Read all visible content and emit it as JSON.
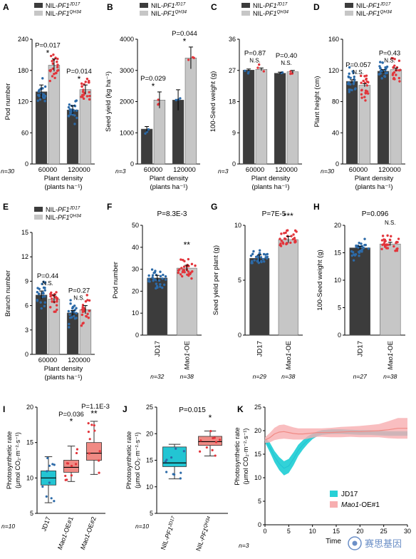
{
  "colors": {
    "dark_bar": "#3c3c3c",
    "light_bar": "#c6c6c6",
    "blue": "#2c6aa8",
    "red": "#e2353b",
    "cyan": "#23c5d3",
    "salmon": "#f08a84",
    "jd17_fill": "#27d0d6",
    "mao1_fill": "#f7aeb0",
    "watermark": "#6b8fc7"
  },
  "chart_data": [
    {
      "panel": "A",
      "type": "bar",
      "legend": [
        "NIL-PF1^JD17",
        "NIL-PF1^QH34"
      ],
      "ylabel": "Pod number",
      "xlabel": [
        "Plant density",
        "(plants ha⁻¹)"
      ],
      "categories": [
        "60000",
        "120000"
      ],
      "series": [
        {
          "name": "NIL-PF1^JD17",
          "values": [
            139,
            104
          ],
          "errors": [
            13,
            8
          ]
        },
        {
          "name": "NIL-PF1^QH34",
          "values": [
            190,
            143
          ],
          "errors": [
            12,
            9
          ]
        }
      ],
      "ylim": [
        0,
        240
      ],
      "yticks": [
        0,
        60,
        120,
        180,
        240
      ],
      "pvalues": [
        {
          "text": "P=0.017",
          "sig": "*"
        },
        {
          "text": "P=0.014",
          "sig": "*"
        }
      ],
      "n_label": "n=30"
    },
    {
      "panel": "B",
      "type": "bar",
      "legend": [
        "NIL-PF1^JD17",
        "NIL-PF1^QH34"
      ],
      "ylabel": "Seed yield (kg ha⁻¹)",
      "xlabel": [
        "Plant density",
        "(plants ha⁻¹)"
      ],
      "categories": [
        "60000",
        "120000"
      ],
      "series": [
        {
          "name": "NIL-PF1^JD17",
          "values": [
            1120,
            2050
          ],
          "errors": [
            80,
            330
          ]
        },
        {
          "name": "NIL-PF1^QH34",
          "values": [
            2050,
            3400
          ],
          "errors": [
            260,
            350
          ]
        }
      ],
      "ylim": [
        0,
        4000
      ],
      "yticks": [
        0,
        1000,
        2000,
        3000,
        4000
      ],
      "pvalues": [
        {
          "text": "P=0.029",
          "sig": "*"
        },
        {
          "text": "P=0.044",
          "sig": "*"
        }
      ],
      "n_label": "n=3"
    },
    {
      "panel": "C",
      "type": "bar",
      "legend": [
        "NIL-PF1^JD17",
        "NIL-PF1^QH34"
      ],
      "ylabel": "100-Seed weight (g)",
      "xlabel": [
        "Plant density",
        "(plants ha⁻¹)"
      ],
      "categories": [
        "60000",
        "120000"
      ],
      "series": [
        {
          "name": "NIL-PF1^JD17",
          "values": [
            27.1,
            26.2
          ],
          "errors": [
            0.3,
            0.3
          ]
        },
        {
          "name": "NIL-PF1^QH34",
          "values": [
            27.3,
            26.6
          ],
          "errors": [
            0.4,
            0.4
          ]
        }
      ],
      "ylim": [
        0,
        36
      ],
      "yticks": [
        0,
        9,
        18,
        27,
        36
      ],
      "pvalues": [
        {
          "text": "P=0.87",
          "sig": "N.S."
        },
        {
          "text": "P=0.40",
          "sig": "N.S."
        }
      ],
      "n_label": "n=3"
    },
    {
      "panel": "D",
      "type": "bar",
      "legend": [
        "NIL-PF1^JD17",
        "NIL-PF1^QH34"
      ],
      "ylabel": "Plant height (cm)",
      "xlabel": [
        "Plant density",
        "(plants ha⁻¹)"
      ],
      "categories": [
        "60000",
        "120000"
      ],
      "series": [
        {
          "name": "NIL-PF1^JD17",
          "values": [
            106,
            119
          ],
          "errors": [
            2,
            2
          ]
        },
        {
          "name": "NIL-PF1^QH34",
          "values": [
            101,
            121
          ],
          "errors": [
            2,
            2
          ]
        }
      ],
      "ylim": [
        0,
        160
      ],
      "yticks": [
        0,
        40,
        80,
        120,
        160
      ],
      "pvalues": [
        {
          "text": "P=0.057",
          "sig": "N.S."
        },
        {
          "text": "P=0.43",
          "sig": "N.S."
        }
      ],
      "n_label": "n=30"
    },
    {
      "panel": "E",
      "type": "bar",
      "legend": [
        "NIL-PF1^JD17",
        "NIL-PF1^QH34"
      ],
      "ylabel": "Branch number",
      "xlabel": [
        "Plant density",
        "(plants ha⁻¹)"
      ],
      "categories": [
        "60000",
        "120000"
      ],
      "series": [
        {
          "name": "NIL-PF1^JD17",
          "values": [
            7.3,
            5.1
          ],
          "errors": [
            0.5,
            0.3
          ]
        },
        {
          "name": "NIL-PF1^QH34",
          "values": [
            6.8,
            5.5
          ],
          "errors": [
            0.5,
            0.5
          ]
        }
      ],
      "ylim": [
        0,
        15
      ],
      "yticks": [
        0,
        3,
        6,
        9,
        12,
        15
      ],
      "pvalues": [
        {
          "text": "P=0.44",
          "sig": "N.S."
        },
        {
          "text": "P=0.27",
          "sig": "N.S."
        }
      ],
      "n_label": ""
    },
    {
      "panel": "F",
      "type": "bar",
      "ylabel": "Pod number",
      "categories": [
        "JD17",
        "Mao1-OE"
      ],
      "values": [
        26,
        30.5
      ],
      "errors": [
        1.2,
        1.3
      ],
      "ylim": [
        0,
        50
      ],
      "yticks": [
        0,
        10,
        20,
        30,
        40,
        50
      ],
      "ptitle": "P=8.3E-3",
      "sig": "**",
      "n_labels": [
        "n=32",
        "n=38"
      ]
    },
    {
      "panel": "G",
      "type": "bar",
      "ylabel": "Seed yield per plant (g)",
      "categories": [
        "JD17",
        "Mao1-OE"
      ],
      "values": [
        7.0,
        8.7
      ],
      "errors": [
        0.3,
        0.3
      ],
      "ylim": [
        0,
        10
      ],
      "yticks": [
        0,
        5,
        10
      ],
      "ptitle": "P=7E-5",
      "sig": "***",
      "n_labels": [
        "n=29",
        "n=38"
      ]
    },
    {
      "panel": "H",
      "type": "bar",
      "ylabel": "100-Seed weight (g)",
      "categories": [
        "JD17",
        "Mao1-OE"
      ],
      "values": [
        15.9,
        16.6
      ],
      "errors": [
        0.3,
        0.3
      ],
      "ylim": [
        0,
        20
      ],
      "yticks": [
        0,
        5,
        10,
        15,
        20
      ],
      "ptitle": "P=0.096",
      "sig": "N.S.",
      "n_labels": [
        "n=27",
        "n=38"
      ]
    },
    {
      "panel": "I",
      "type": "box",
      "ylabel": [
        "Photosynthetic rate",
        "(μmol CO₂·m⁻²·s⁻¹)"
      ],
      "categories": [
        "JD17",
        "Mao1-OE#1",
        "Mao1-OE#2"
      ],
      "boxes": [
        {
          "min": 6.5,
          "q1": 9,
          "median": 10,
          "q3": 11,
          "max": 13
        },
        {
          "min": 9.5,
          "q1": 10.8,
          "median": 11.5,
          "q3": 12.5,
          "max": 14.5
        },
        {
          "min": 10.5,
          "q1": 12.5,
          "median": 13.5,
          "q3": 15,
          "max": 18
        }
      ],
      "ylim": [
        5,
        20
      ],
      "yticks": [
        5,
        10,
        15,
        20
      ],
      "annotations": [
        {
          "text": "P=0.036",
          "sig": "*"
        },
        {
          "text": "P=1.1E-3",
          "sig": "**"
        }
      ],
      "n_label": "n=10"
    },
    {
      "panel": "J",
      "type": "box",
      "ylabel": [
        "Photosynthetic rate",
        "(μmol CO₂·m⁻²·s⁻¹)"
      ],
      "categories": [
        "NIL-PF1^JD17",
        "NIL-PF1^QH34"
      ],
      "boxes": [
        {
          "min": 11.5,
          "q1": 13.8,
          "median": 14.5,
          "q3": 17.5,
          "max": 18
        },
        {
          "min": 15.8,
          "q1": 17.8,
          "median": 18.5,
          "q3": 19.5,
          "max": 20.5
        }
      ],
      "ylim": [
        5,
        25
      ],
      "yticks": [
        5,
        10,
        15,
        20,
        25
      ],
      "ptitle": "P=0.015",
      "sig": "*",
      "n_label": "n=10"
    },
    {
      "panel": "K",
      "type": "area",
      "ylabel": [
        "Photosynthetic rate",
        "(μmol CO₂·m⁻²·s⁻¹)"
      ],
      "xlabel": "Time",
      "x": [
        0,
        1,
        2,
        3,
        4,
        5,
        6,
        7,
        8,
        9,
        10,
        11,
        12,
        14,
        16,
        18,
        20,
        22,
        24,
        26,
        28,
        30
      ],
      "series": [
        {
          "name": "JD17",
          "mean": [
            18,
            16.5,
            14.5,
            13,
            12,
            12.5,
            14,
            15.8,
            17,
            18,
            18.8,
            19.3,
            19.6,
            19.8,
            19.8,
            19.7,
            19.6,
            19.6,
            19.5,
            19.4,
            19.4,
            19.4
          ],
          "sd": [
            0.5,
            1,
            1.2,
            1.4,
            1.5,
            1.5,
            1.4,
            1.2,
            1.0,
            0.8,
            0.6,
            0.5,
            0.5,
            0.5,
            0.5,
            0.5,
            0.5,
            0.5,
            0.5,
            0.5,
            0.5,
            0.5
          ]
        },
        {
          "name": "Mao1-OE#1",
          "mean": [
            18,
            18.5,
            19.3,
            19.7,
            19.8,
            19.6,
            19.4,
            19.3,
            19.3,
            19.4,
            19.5,
            19.6,
            19.6,
            19.6,
            19.7,
            19.8,
            19.8,
            19.9,
            20,
            20.2,
            20.5,
            20.5
          ],
          "sd": [
            0.6,
            1.0,
            1.3,
            1.5,
            1.5,
            1.4,
            1.3,
            1.2,
            1.2,
            1.1,
            1.0,
            0.9,
            0.9,
            1.0,
            1.1,
            1.1,
            1.2,
            1.3,
            1.4,
            1.8,
            2.2,
            2.2
          ]
        }
      ],
      "xlim": [
        0,
        30
      ],
      "ylim": [
        0,
        25
      ],
      "yticks": [
        0,
        5,
        10,
        15,
        20,
        25
      ],
      "xticks": [
        0,
        5,
        10,
        15,
        20,
        25,
        30
      ],
      "legend_position": "bottom-left",
      "n_label": "n=3"
    }
  ],
  "watermark": "赛思基因"
}
